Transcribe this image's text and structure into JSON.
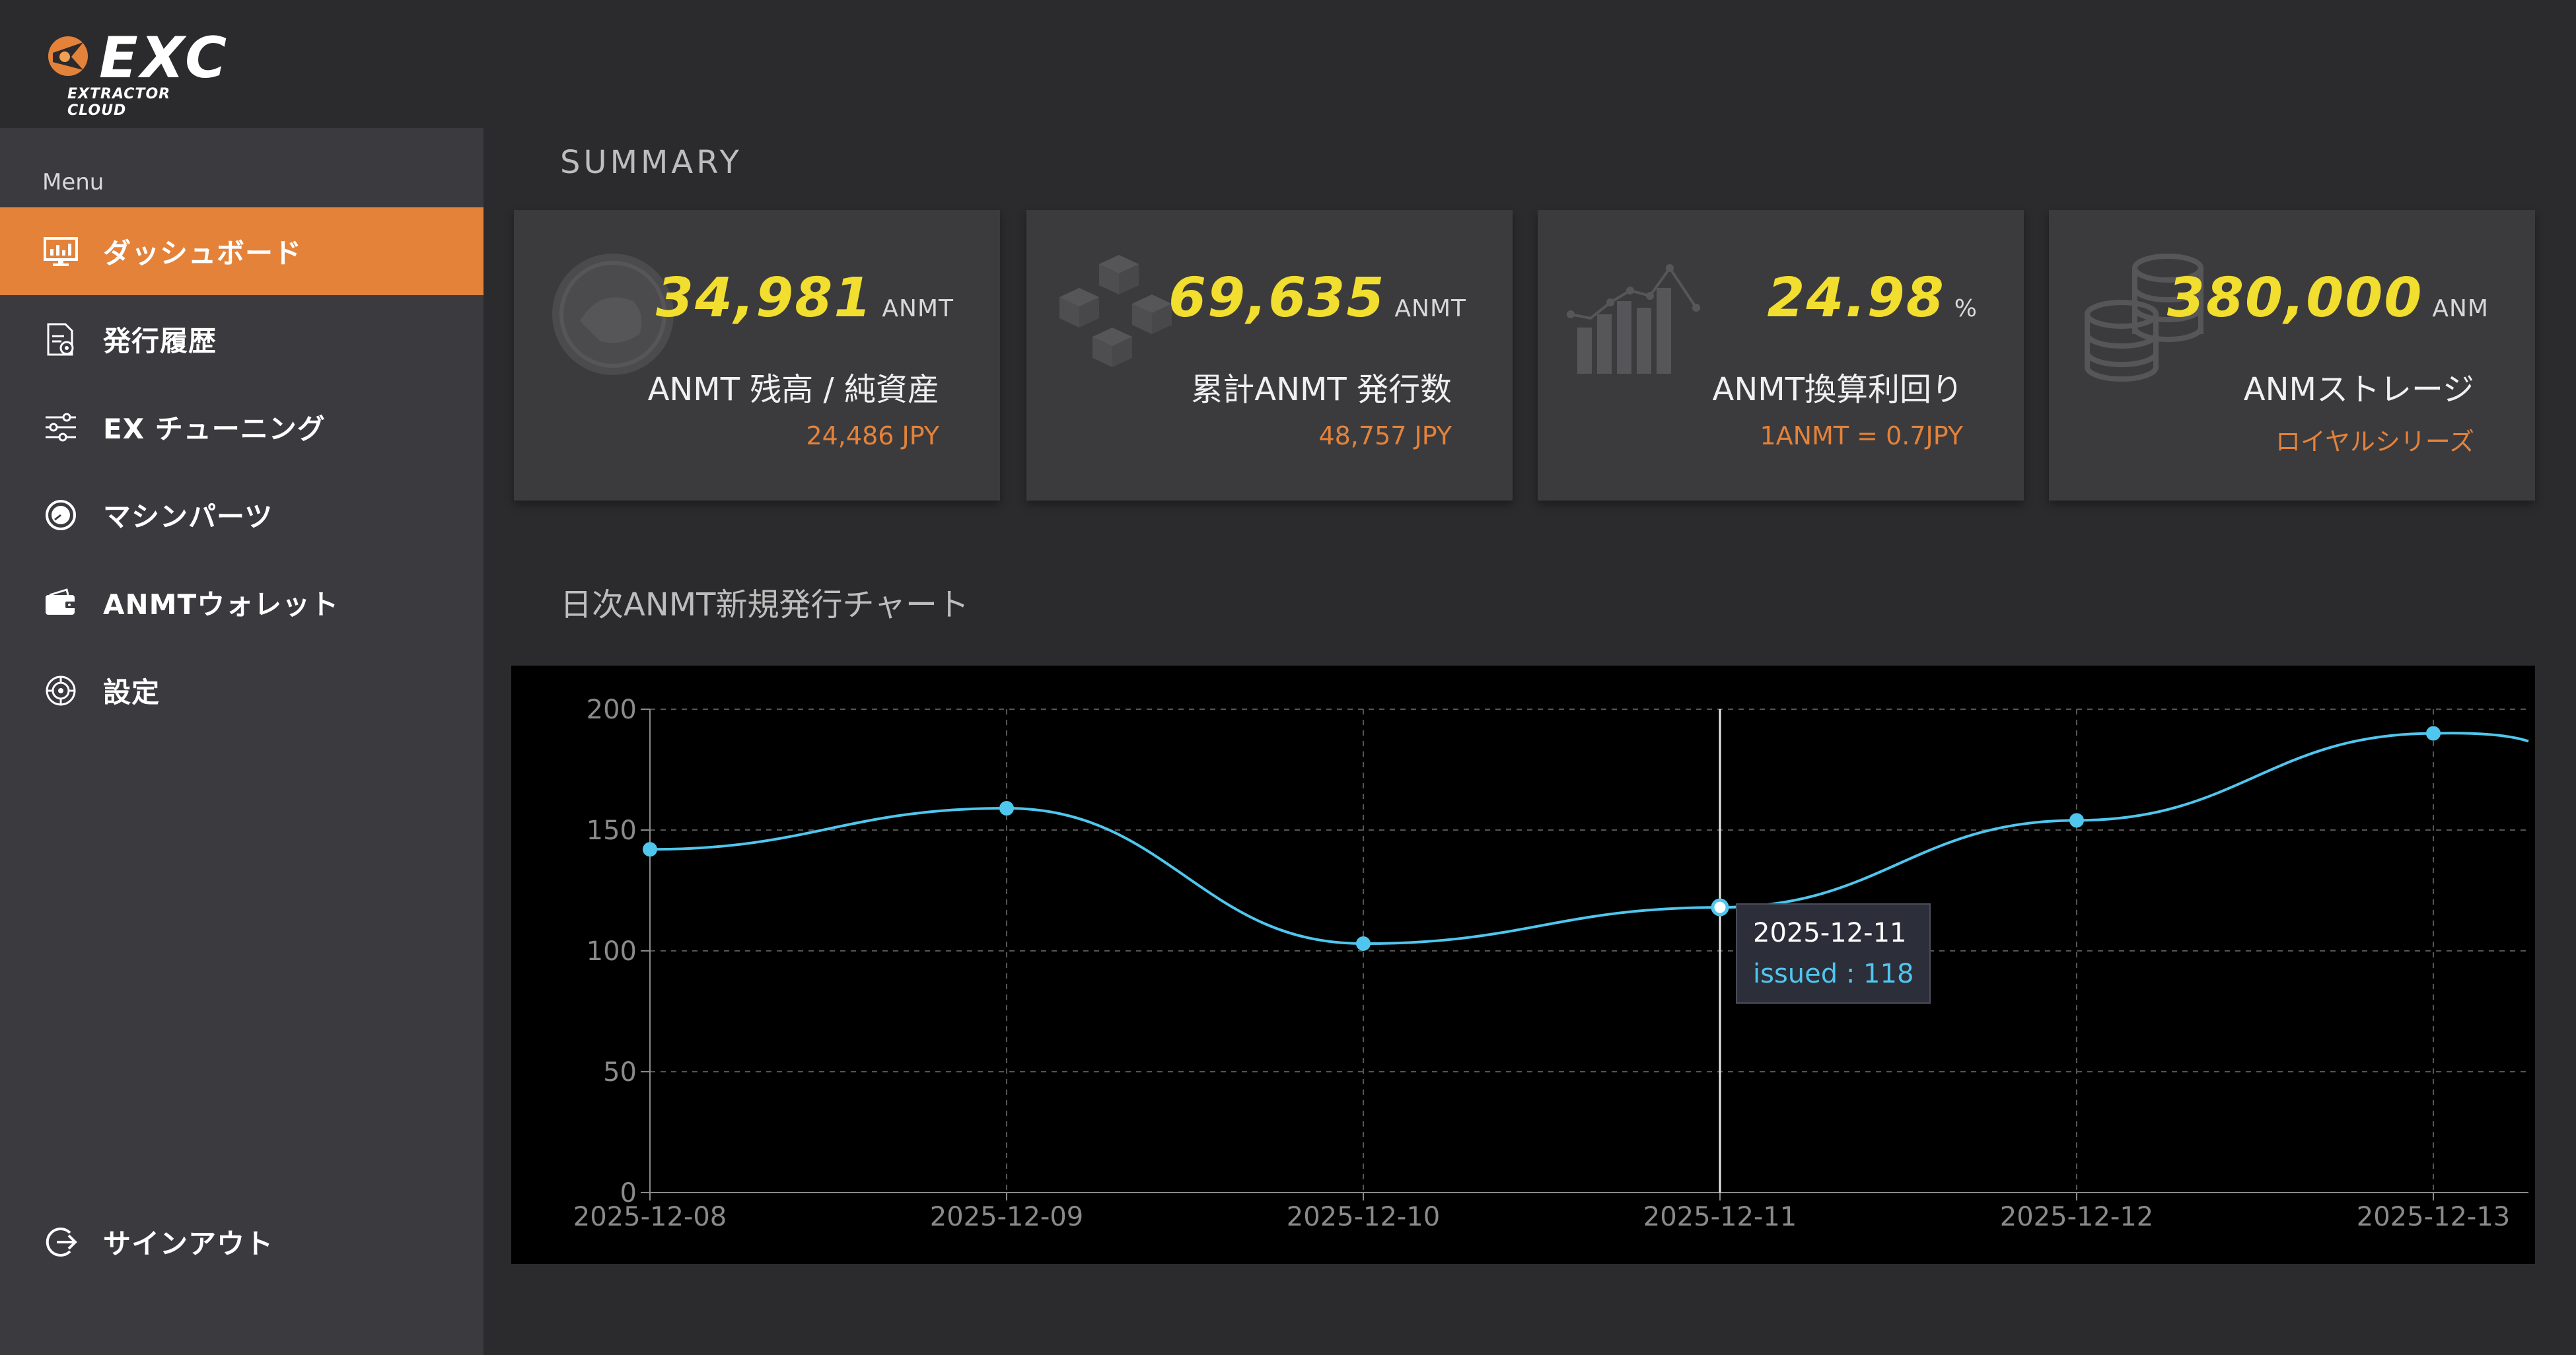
{
  "header": {
    "logo_text": "EXC",
    "logo_subtitle": "EXTRACTOR CLOUD"
  },
  "sidebar": {
    "caption": "Menu",
    "items": [
      {
        "label": "ダッシュボード",
        "icon": "monitor-chart-icon",
        "active": true
      },
      {
        "label": "発行履歴",
        "icon": "document-gear-icon",
        "active": false
      },
      {
        "label": "EX チューニング",
        "icon": "sliders-icon",
        "active": false
      },
      {
        "label": "マシンパーツ",
        "icon": "gauge-icon",
        "active": false
      },
      {
        "label": "ANMTウォレット",
        "icon": "wallet-icon",
        "active": false
      },
      {
        "label": "設定",
        "icon": "gear-icon",
        "active": false
      }
    ],
    "signout": {
      "label": "サインアウト",
      "icon": "signout-icon"
    }
  },
  "summary": {
    "title": "SUMMARY",
    "cards": [
      {
        "value": "34,981",
        "unit": "ANMT",
        "label": "ANMT 残高 / 純資産",
        "sub": "24,486 JPY",
        "icon": "emblem-icon"
      },
      {
        "value": "69,635",
        "unit": "ANMT",
        "label": "累計ANMT 発行数",
        "sub": "48,757 JPY",
        "icon": "blocks-icon"
      },
      {
        "value": "24.98",
        "unit": "%",
        "label": "ANMT換算利回り",
        "sub": "1ANMT = 0.7JPY",
        "icon": "bar-line-chart-icon"
      },
      {
        "value": "380,000",
        "unit": "ANM",
        "label": "ANMストレージ",
        "sub": "ロイヤルシリーズ",
        "icon": "coins-icon"
      }
    ]
  },
  "chart_section": {
    "title": "日次ANMT新規発行チャート"
  },
  "tooltip": {
    "date": "2025-12-11",
    "text": "issued : 118"
  },
  "colors": {
    "accent": "#e4823a",
    "value": "#f2de2e",
    "line": "#4fc6ee"
  },
  "chart_data": {
    "type": "line",
    "title": "",
    "xlabel": "",
    "ylabel": "",
    "categories": [
      "2025-12-08",
      "2025-12-09",
      "2025-12-10",
      "2025-12-11",
      "2025-12-12",
      "2025-12-13"
    ],
    "series": [
      {
        "values": [
          142,
          159,
          103,
          118,
          154,
          190
        ]
      }
    ],
    "ylim": [
      0,
      200
    ],
    "yticks": [
      0,
      50,
      100,
      150,
      200
    ],
    "grid": true,
    "highlight_index": 3
  }
}
